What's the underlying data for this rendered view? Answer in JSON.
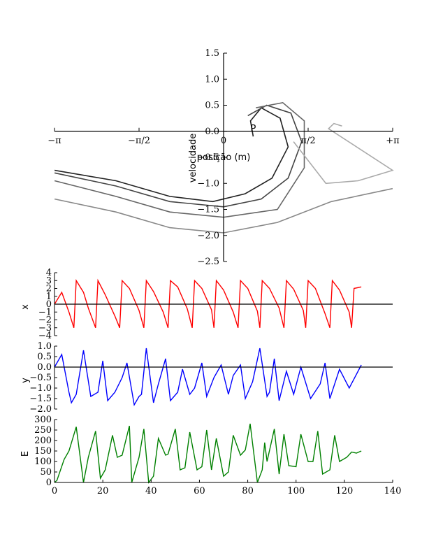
{
  "chart_data": [
    {
      "type": "line",
      "title": "",
      "xlabel": "posição (m)",
      "ylabel": "velocidade",
      "xlim": [
        -3.1416,
        3.1416
      ],
      "ylim": [
        -2.5,
        1.5
      ],
      "x_ticks": [
        "−π",
        "−π/2",
        "0",
        "π/2",
        "+π"
      ],
      "y_ticks": [
        "1.5",
        "1.0",
        "0.5",
        "0.0",
        "−0.5",
        "−1.0",
        "−1.5",
        "−2.0",
        "−2.5"
      ],
      "y_tick_values": [
        1.5,
        1.0,
        0.5,
        0.0,
        -0.5,
        -1.0,
        -1.5,
        -2.0,
        -2.5
      ],
      "annotations": [
        {
          "text": "P",
          "x": 0.55,
          "y": 0.05,
          "color": "#0000ff"
        }
      ],
      "series": [
        {
          "values": [
            [
              -3.14,
              -0.75
            ],
            [
              -2.0,
              -0.95
            ],
            [
              -1.0,
              -1.25
            ],
            [
              -0.2,
              -1.35
            ],
            [
              0.4,
              -1.2
            ],
            [
              0.9,
              -0.9
            ],
            [
              1.2,
              -0.3
            ],
            [
              1.05,
              0.25
            ],
            [
              0.7,
              0.45
            ],
            [
              0.5,
              0.2
            ],
            [
              0.55,
              -0.1
            ]
          ]
        },
        {
          "values": [
            [
              -3.14,
              -0.8
            ],
            [
              -2.0,
              -1.05
            ],
            [
              -1.0,
              -1.35
            ],
            [
              0,
              -1.45
            ],
            [
              0.7,
              -1.3
            ],
            [
              1.2,
              -0.9
            ],
            [
              1.45,
              -0.2
            ],
            [
              1.25,
              0.35
            ],
            [
              0.8,
              0.5
            ],
            [
              0.45,
              0.3
            ]
          ]
        },
        {
          "values": [
            [
              -3.14,
              -0.95
            ],
            [
              -2.0,
              -1.25
            ],
            [
              -1.0,
              -1.55
            ],
            [
              0,
              -1.65
            ],
            [
              1.0,
              -1.5
            ],
            [
              1.5,
              -0.7
            ],
            [
              1.5,
              0.2
            ],
            [
              1.1,
              0.55
            ],
            [
              0.6,
              0.45
            ]
          ]
        },
        {
          "values": [
            [
              -3.14,
              -1.3
            ],
            [
              -2.0,
              -1.55
            ],
            [
              -1.0,
              -1.85
            ],
            [
              0,
              -1.95
            ],
            [
              1.0,
              -1.75
            ],
            [
              2.0,
              -1.35
            ],
            [
              3.14,
              -1.1
            ]
          ]
        },
        {
          "values": [
            [
              1.3,
              -0.2
            ],
            [
              1.9,
              -1.0
            ],
            [
              2.5,
              -0.95
            ],
            [
              3.14,
              -0.75
            ],
            [
              1.95,
              0.05
            ],
            [
              2.05,
              0.15
            ],
            [
              2.2,
              0.1
            ]
          ]
        }
      ]
    },
    {
      "type": "line",
      "ylabel": "x",
      "xlim": [
        0,
        140
      ],
      "ylim": [
        -4,
        4
      ],
      "y_ticks": [
        "4",
        "3",
        "2",
        "1",
        "0",
        "−1",
        "−2",
        "−3",
        "−4"
      ],
      "y_tick_values": [
        4,
        3,
        2,
        1,
        0,
        -1,
        -2,
        -3,
        -4
      ],
      "series": [
        {
          "name": "",
          "color": "#ff0000",
          "x": [
            0,
            3,
            6,
            8,
            9,
            12,
            14,
            17,
            18,
            21,
            25,
            27,
            28,
            31,
            35,
            37,
            38,
            41,
            45,
            47,
            48,
            51,
            55,
            57,
            58,
            61,
            65,
            66,
            67,
            70,
            74,
            76,
            77,
            80,
            84,
            85,
            86,
            89,
            93,
            95,
            96,
            99,
            103,
            104,
            105,
            108,
            112,
            114,
            115,
            118,
            122,
            123,
            124,
            127
          ],
          "values": [
            0,
            1.5,
            -1.0,
            -3.0,
            3.0,
            1.5,
            -0.5,
            -3.0,
            3.0,
            1.2,
            -1.5,
            -3.0,
            3.0,
            2.0,
            -0.8,
            -3.0,
            3.0,
            1.6,
            -1.0,
            -3.0,
            3.0,
            2.2,
            -0.6,
            -3.0,
            3.0,
            2.0,
            -0.7,
            -3.0,
            3.0,
            1.8,
            -1.0,
            -3.0,
            3.0,
            2.0,
            -0.9,
            -3.0,
            3.0,
            2.0,
            -0.5,
            -3.0,
            3.0,
            1.9,
            -0.8,
            -3.0,
            3.0,
            2.0,
            -1.2,
            -3.0,
            3.0,
            1.8,
            -1.0,
            -3.0,
            2.0,
            2.2
          ]
        }
      ]
    },
    {
      "type": "line",
      "ylabel": "y",
      "xlim": [
        0,
        140
      ],
      "ylim": [
        -2.0,
        1.0
      ],
      "y_ticks": [
        "1.0",
        "0.5",
        "0.0",
        "−0.5",
        "−1.0",
        "−1.5",
        "−2.0"
      ],
      "y_tick_values": [
        1.0,
        0.5,
        0.0,
        -0.5,
        -1.0,
        -1.5,
        -2.0
      ],
      "series": [
        {
          "name": "",
          "color": "#0000ff",
          "x": [
            0,
            3,
            6,
            7,
            9,
            12,
            15,
            18,
            20,
            22,
            25,
            28,
            30,
            33,
            35,
            36,
            38,
            41,
            43,
            46,
            48,
            51,
            53,
            56,
            58,
            61,
            63,
            66,
            69,
            72,
            74,
            77,
            79,
            82,
            85,
            88,
            89,
            91,
            93,
            96,
            99,
            102,
            106,
            110,
            112,
            114,
            118,
            122,
            127
          ],
          "values": [
            0,
            0.6,
            -1.2,
            -1.7,
            -1.3,
            0.8,
            -1.4,
            -1.2,
            0.3,
            -1.6,
            -1.2,
            -0.5,
            0.2,
            -1.8,
            -1.4,
            -1.3,
            0.9,
            -1.7,
            -0.8,
            0.4,
            -1.6,
            -1.2,
            -0.1,
            -1.3,
            -1.0,
            0.2,
            -1.4,
            -0.5,
            0.1,
            -1.3,
            -0.4,
            0.1,
            -1.5,
            -0.7,
            0.9,
            -1.4,
            -1.2,
            0.4,
            -1.6,
            -0.2,
            -1.3,
            0.0,
            -1.5,
            -0.8,
            0.2,
            -1.5,
            -0.1,
            -1.0,
            0.1
          ]
        }
      ]
    },
    {
      "type": "line",
      "ylabel": "E",
      "xlim": [
        0,
        140
      ],
      "ylim": [
        0,
        300
      ],
      "y_ticks": [
        "300",
        "250",
        "200",
        "150",
        "100",
        "50",
        "0"
      ],
      "y_tick_values": [
        300,
        250,
        200,
        150,
        100,
        50,
        0
      ],
      "x_ticks": [
        "0",
        "20",
        "40",
        "60",
        "80",
        "100",
        "120",
        "140"
      ],
      "x_tick_values": [
        0,
        20,
        40,
        60,
        80,
        100,
        120,
        140
      ],
      "series": [
        {
          "name": "",
          "color": "#008000",
          "x": [
            0,
            1,
            4,
            6,
            9,
            12,
            14,
            17,
            19,
            21,
            24,
            26,
            28,
            31,
            32,
            35,
            37,
            39,
            41,
            43,
            46,
            47,
            50,
            52,
            54,
            56,
            59,
            61,
            63,
            65,
            67,
            70,
            72,
            74,
            77,
            79,
            81,
            84,
            86,
            87,
            88,
            91,
            93,
            95,
            97,
            100,
            102,
            105,
            107,
            109,
            111,
            114,
            116,
            118,
            121,
            123,
            125,
            127
          ],
          "values": [
            0,
            10,
            110,
            150,
            265,
            0,
            120,
            245,
            20,
            60,
            225,
            120,
            130,
            270,
            0,
            120,
            255,
            0,
            30,
            210,
            130,
            135,
            255,
            60,
            70,
            240,
            60,
            75,
            250,
            60,
            210,
            30,
            50,
            225,
            130,
            155,
            280,
            0,
            60,
            190,
            100,
            255,
            40,
            230,
            80,
            75,
            230,
            100,
            100,
            245,
            40,
            60,
            225,
            100,
            120,
            145,
            140,
            150
          ]
        }
      ]
    }
  ]
}
